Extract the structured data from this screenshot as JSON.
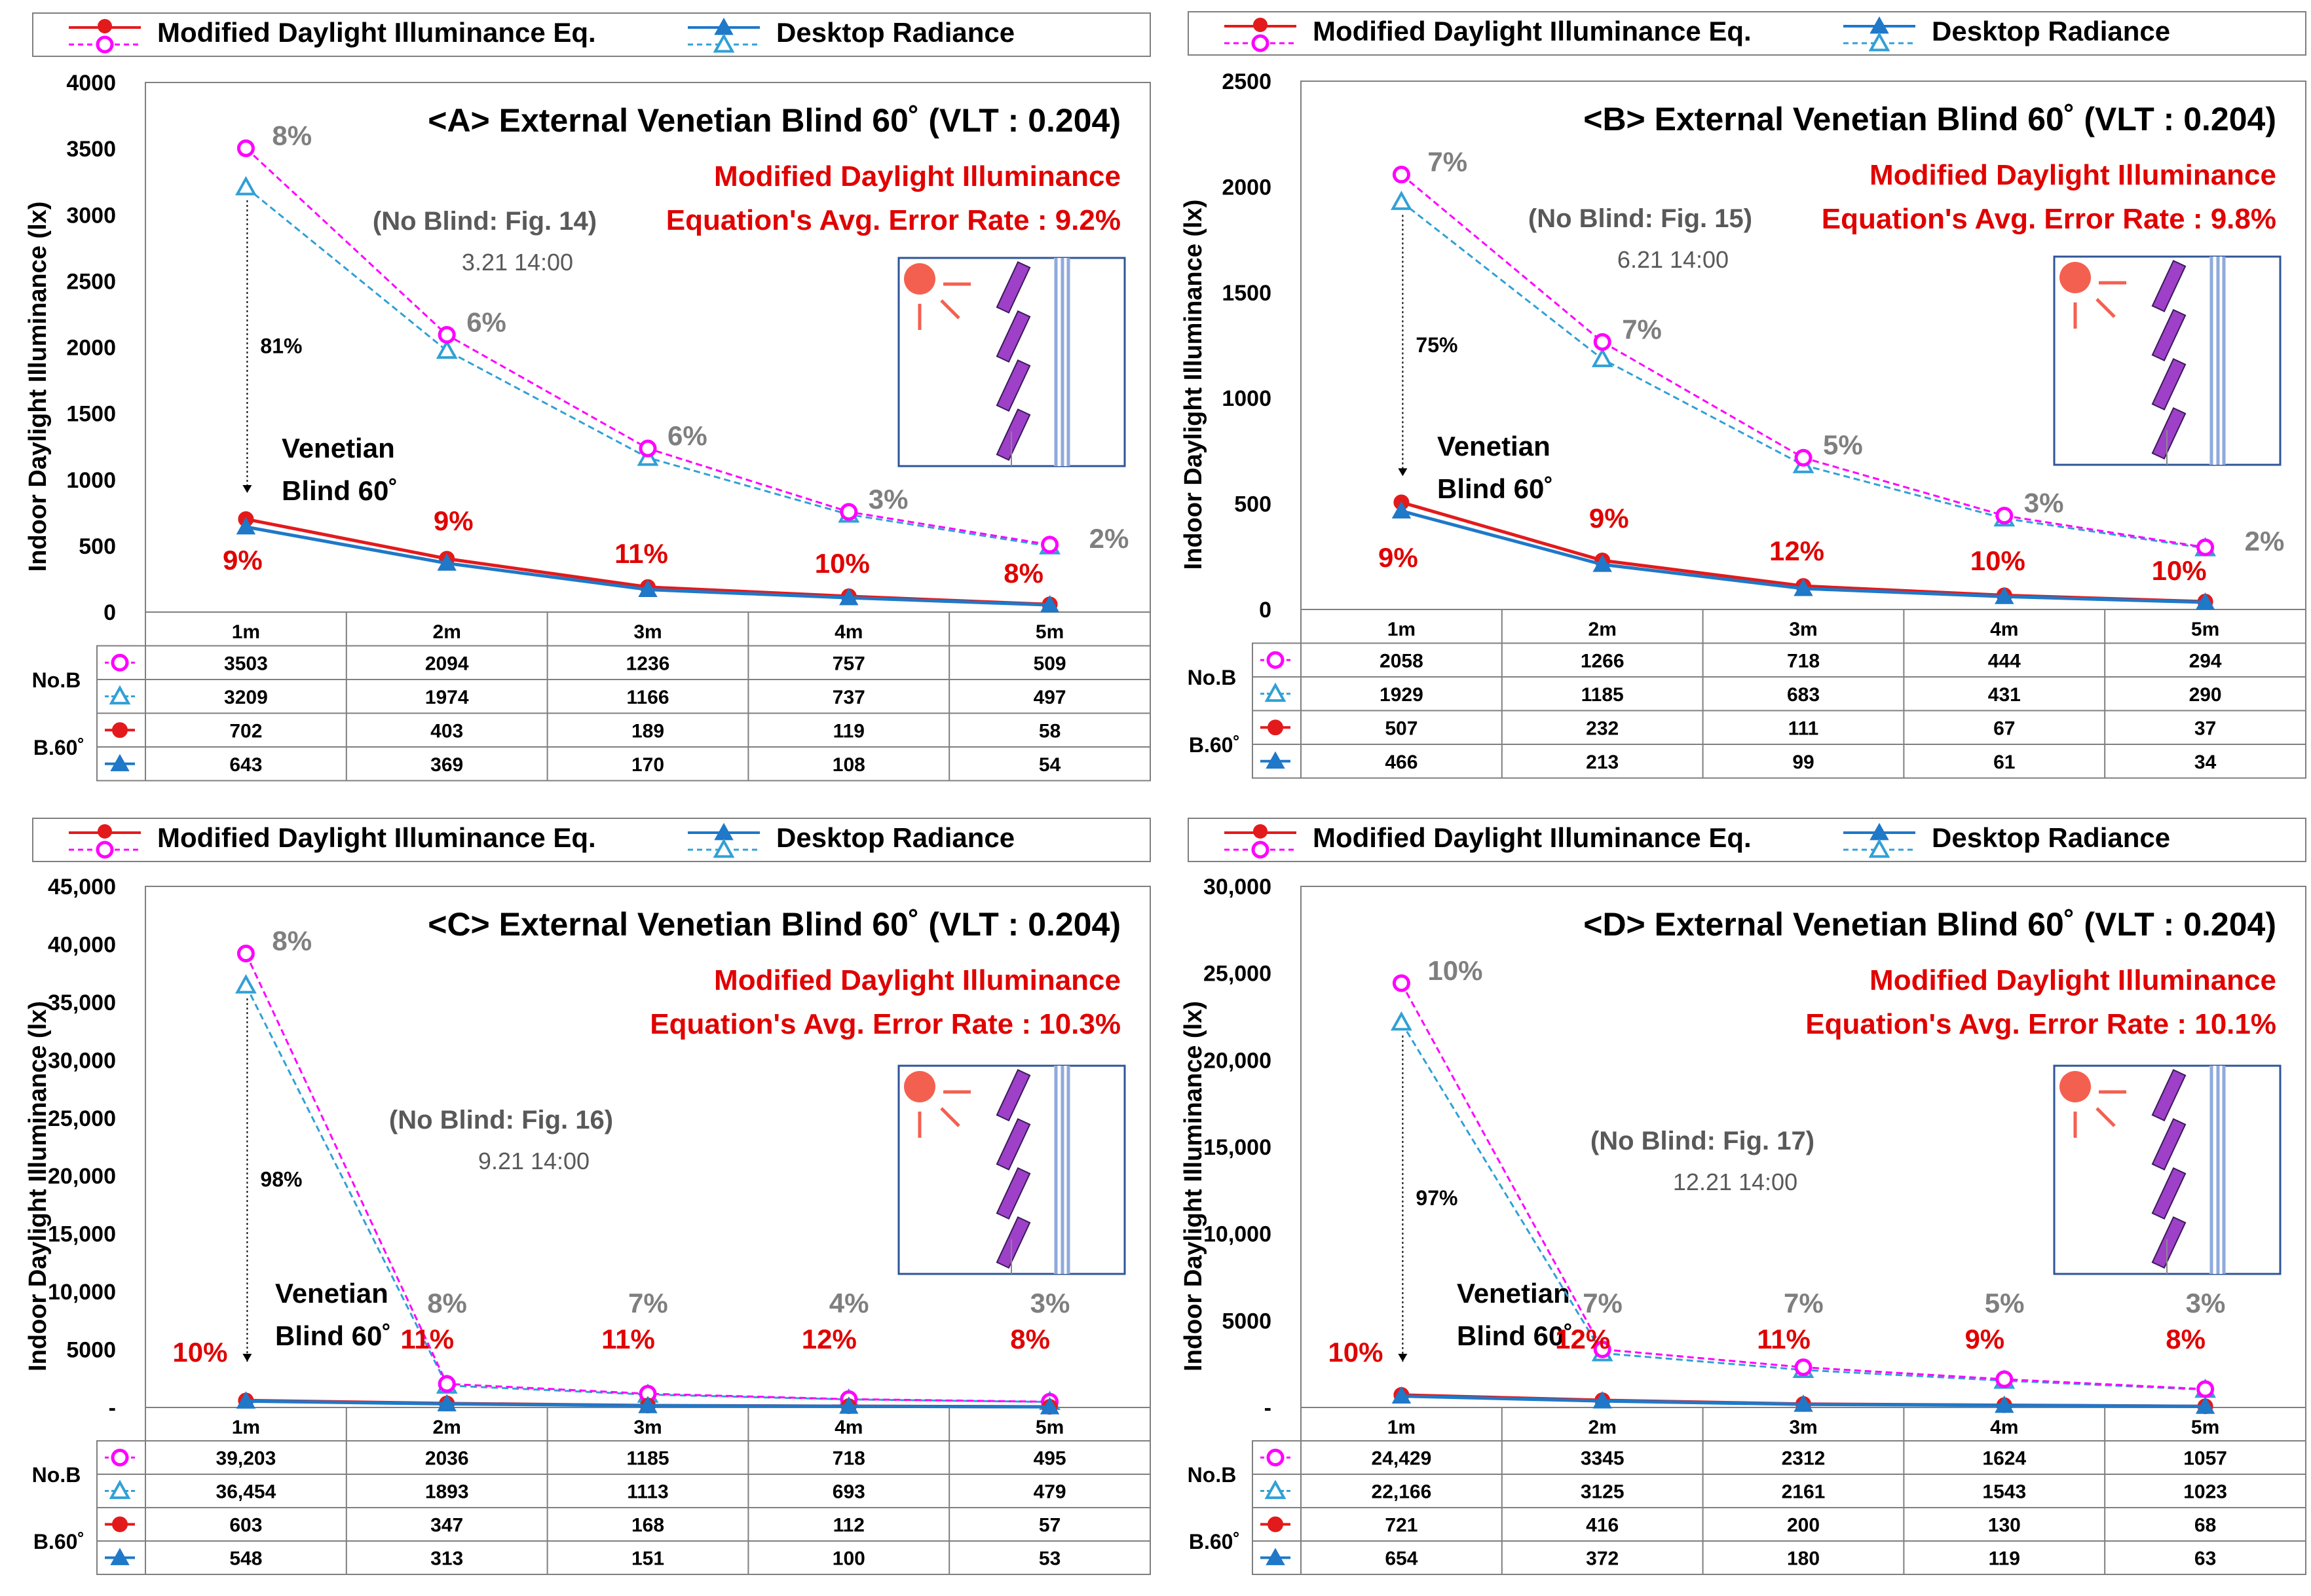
{
  "legend": {
    "mdie_label": "Modified Daylight Illuminance Eq.",
    "radiance_label": "Desktop Radiance"
  },
  "ylabel": "Indoor Daylight Illuminance (lx)",
  "x_categories": [
    "1m",
    "2m",
    "3m",
    "4m",
    "5m"
  ],
  "table_groups": {
    "no_blind": "No.B",
    "blind": "B.60˚"
  },
  "venetian_label": [
    "Venetian",
    "Blind 60˚"
  ],
  "error_title": "Modified Daylight Illuminance",
  "colors": {
    "mdie": "#e31a1c",
    "mdie_noblind": "#ff00ff",
    "radiance": "#1f78c8",
    "radiance_noblind": "#31a0d6",
    "error_text": "#e00000",
    "gray_text": "#595959"
  },
  "chart_data": [
    {
      "panel": "A",
      "type": "line",
      "title": "<A> External Venetian Blind 60˚ (VLT : 0.204)",
      "error_rate": "Equation's Avg. Error Rate : 9.2%",
      "no_blind_ref": "(No Blind: Fig. 14)",
      "datetime": "3.21 14:00",
      "reduction": "81%",
      "ylim": [
        0,
        4000
      ],
      "yticks": [
        "0",
        "500",
        "1000",
        "1500",
        "2000",
        "2500",
        "3000",
        "3500",
        "4000"
      ],
      "categories": [
        "1m",
        "2m",
        "3m",
        "4m",
        "5m"
      ],
      "series": {
        "no_blind_mdie": [
          3503,
          2094,
          1236,
          757,
          509
        ],
        "no_blind_radiance": [
          3209,
          1974,
          1166,
          737,
          497
        ],
        "blind_mdie": [
          702,
          403,
          189,
          119,
          58
        ],
        "blind_radiance": [
          643,
          369,
          170,
          108,
          54
        ]
      },
      "table_values": {
        "no_blind_mdie": [
          "3503",
          "2094",
          "1236",
          "757",
          "509"
        ],
        "no_blind_radiance": [
          "3209",
          "1974",
          "1166",
          "737",
          "497"
        ],
        "blind_mdie": [
          "702",
          "403",
          "189",
          "119",
          "58"
        ],
        "blind_radiance": [
          "643",
          "369",
          "170",
          "108",
          "54"
        ]
      },
      "errors_no_blind": [
        "8%",
        "6%",
        "6%",
        "3%",
        "2%"
      ],
      "errors_blind": [
        "9%",
        "9%",
        "11%",
        "10%",
        "8%"
      ]
    },
    {
      "panel": "B",
      "type": "line",
      "title": "<B> External Venetian Blind 60˚ (VLT : 0.204)",
      "error_rate": "Equation's Avg. Error Rate : 9.8%",
      "no_blind_ref": "(No Blind: Fig. 15)",
      "datetime": "6.21 14:00",
      "reduction": "75%",
      "ylim": [
        0,
        2500
      ],
      "yticks": [
        "0",
        "500",
        "1000",
        "1500",
        "2000",
        "2500"
      ],
      "categories": [
        "1m",
        "2m",
        "3m",
        "4m",
        "5m"
      ],
      "series": {
        "no_blind_mdie": [
          2058,
          1266,
          718,
          444,
          294
        ],
        "no_blind_radiance": [
          1929,
          1185,
          683,
          431,
          290
        ],
        "blind_mdie": [
          507,
          232,
          111,
          67,
          37
        ],
        "blind_radiance": [
          466,
          213,
          99,
          61,
          34
        ]
      },
      "table_values": {
        "no_blind_mdie": [
          "2058",
          "1266",
          "718",
          "444",
          "294"
        ],
        "no_blind_radiance": [
          "1929",
          "1185",
          "683",
          "431",
          "290"
        ],
        "blind_mdie": [
          "507",
          "232",
          "111",
          "67",
          "37"
        ],
        "blind_radiance": [
          "466",
          "213",
          "99",
          "61",
          "34"
        ]
      },
      "errors_no_blind": [
        "7%",
        "7%",
        "5%",
        "3%",
        "2%"
      ],
      "errors_blind": [
        "9%",
        "9%",
        "12%",
        "10%",
        "10%"
      ]
    },
    {
      "panel": "C",
      "type": "line",
      "title": "<C> External Venetian Blind 60˚ (VLT : 0.204)",
      "error_rate": "Equation's Avg. Error Rate : 10.3%",
      "no_blind_ref": "(No Blind: Fig. 16)",
      "datetime": "9.21 14:00",
      "reduction": "98%",
      "ylim": [
        0,
        45000
      ],
      "yticks": [
        "-",
        "5000",
        "10,000",
        "15,000",
        "20,000",
        "25,000",
        "30,000",
        "35,000",
        "40,000",
        "45,000"
      ],
      "categories": [
        "1m",
        "2m",
        "3m",
        "4m",
        "5m"
      ],
      "series": {
        "no_blind_mdie": [
          39203,
          2036,
          1185,
          718,
          495
        ],
        "no_blind_radiance": [
          36454,
          1893,
          1113,
          693,
          479
        ],
        "blind_mdie": [
          603,
          347,
          168,
          112,
          57
        ],
        "blind_radiance": [
          548,
          313,
          151,
          100,
          53
        ]
      },
      "table_values": {
        "no_blind_mdie": [
          "39,203",
          "2036",
          "1185",
          "718",
          "495"
        ],
        "no_blind_radiance": [
          "36,454",
          "1893",
          "1113",
          "693",
          "479"
        ],
        "blind_mdie": [
          "603",
          "347",
          "168",
          "112",
          "57"
        ],
        "blind_radiance": [
          "548",
          "313",
          "151",
          "100",
          "53"
        ]
      },
      "errors_no_blind": [
        "8%",
        "8%",
        "7%",
        "4%",
        "3%"
      ],
      "errors_blind": [
        "10%",
        "11%",
        "11%",
        "12%",
        "8%"
      ]
    },
    {
      "panel": "D",
      "type": "line",
      "title": "<D> External Venetian Blind 60˚ (VLT : 0.204)",
      "error_rate": "Equation's Avg. Error Rate : 10.1%",
      "no_blind_ref": "(No Blind: Fig. 17)",
      "datetime": "12.21 14:00",
      "reduction": "97%",
      "ylim": [
        0,
        30000
      ],
      "yticks": [
        "-",
        "5000",
        "10,000",
        "15,000",
        "20,000",
        "25,000",
        "30,000"
      ],
      "categories": [
        "1m",
        "2m",
        "3m",
        "4m",
        "5m"
      ],
      "series": {
        "no_blind_mdie": [
          24429,
          3345,
          2312,
          1624,
          1057
        ],
        "no_blind_radiance": [
          22166,
          3125,
          2161,
          1543,
          1023
        ],
        "blind_mdie": [
          721,
          416,
          200,
          130,
          68
        ],
        "blind_radiance": [
          654,
          372,
          180,
          119,
          63
        ]
      },
      "table_values": {
        "no_blind_mdie": [
          "24,429",
          "3345",
          "2312",
          "1624",
          "1057"
        ],
        "no_blind_radiance": [
          "22,166",
          "3125",
          "2161",
          "1543",
          "1023"
        ],
        "blind_mdie": [
          "721",
          "416",
          "200",
          "130",
          "68"
        ],
        "blind_radiance": [
          "654",
          "372",
          "180",
          "119",
          "63"
        ]
      },
      "errors_no_blind": [
        "10%",
        "7%",
        "7%",
        "5%",
        "3%"
      ],
      "errors_blind": [
        "10%",
        "12%",
        "11%",
        "9%",
        "8%"
      ]
    }
  ]
}
